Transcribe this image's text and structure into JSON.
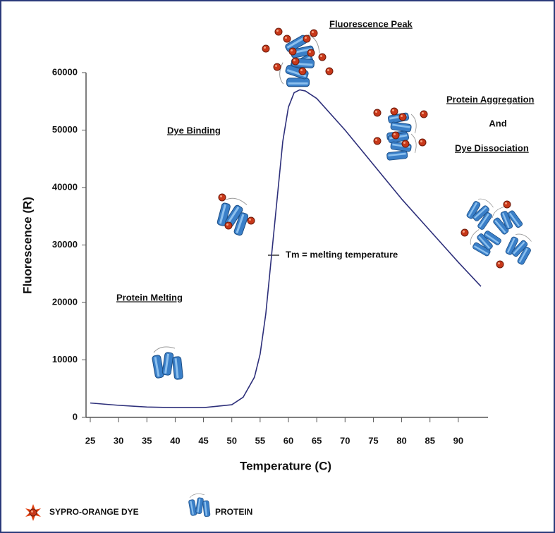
{
  "chart_data": {
    "type": "line",
    "x_label": "Temperature (C)",
    "y_label": "Fluorescence (R)",
    "x": [
      25,
      30,
      35,
      40,
      45,
      50,
      52,
      54,
      55,
      56,
      57,
      58,
      59,
      60,
      61,
      62,
      63,
      65,
      70,
      75,
      80,
      85,
      90,
      94
    ],
    "series": [
      {
        "color": "#2d2f7a",
        "values": [
          2500,
          2100,
          1800,
          1700,
          1700,
          2200,
          3500,
          7000,
          11000,
          18000,
          28000,
          38000,
          48000,
          54000,
          56500,
          57000,
          56800,
          55500,
          50000,
          44000,
          38000,
          32500,
          27000,
          22800
        ]
      }
    ],
    "xlim": [
      25,
      95
    ],
    "ylim": [
      0,
      60000
    ],
    "xticks": [
      25,
      30,
      35,
      40,
      45,
      50,
      55,
      60,
      65,
      70,
      75,
      80,
      85,
      90
    ],
    "yticks": [
      0,
      10000,
      20000,
      30000,
      40000,
      50000,
      60000
    ],
    "annotations": [
      "Fluorescence Peak",
      "Dye Binding",
      "Protein Aggregation",
      "And",
      "Dye Dissociation",
      "Protein Melting",
      "Tm = melting temperature"
    ],
    "legend": [
      "SYPRO-ORANGE DYE",
      "PROTEIN"
    ]
  }
}
